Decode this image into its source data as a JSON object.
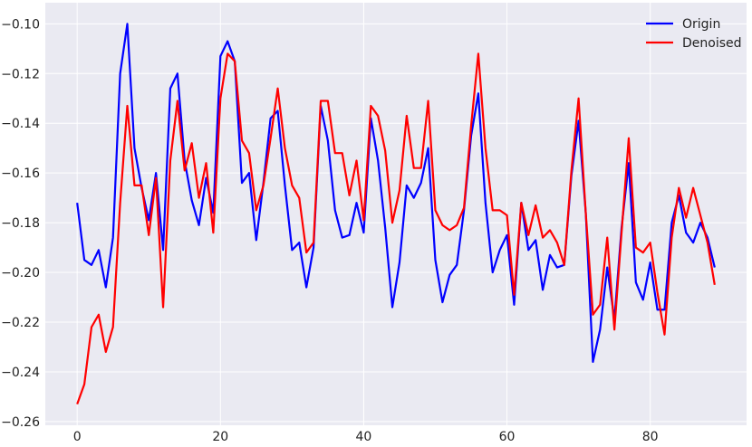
{
  "chart_data": {
    "type": "line",
    "title": "",
    "xlabel": "",
    "ylabel": "",
    "xlim": [
      -4.45,
      93.45
    ],
    "ylim": [
      -0.2615,
      -0.0915
    ],
    "xticks": [
      0,
      20,
      40,
      60,
      80
    ],
    "yticks": [
      -0.26,
      -0.24,
      -0.22,
      -0.2,
      -0.18,
      -0.16,
      -0.14,
      -0.12,
      -0.1
    ],
    "grid": true,
    "background": "#eaeaf2",
    "legend_position": "top-right",
    "series": [
      {
        "name": "Origin",
        "color": "#0000ff",
        "values": [
          -0.172,
          -0.195,
          -0.197,
          -0.191,
          -0.206,
          -0.186,
          -0.12,
          -0.1,
          -0.15,
          -0.166,
          -0.179,
          -0.16,
          -0.191,
          -0.126,
          -0.12,
          -0.155,
          -0.171,
          -0.181,
          -0.162,
          -0.176,
          -0.113,
          -0.107,
          -0.115,
          -0.164,
          -0.16,
          -0.187,
          -0.164,
          -0.138,
          -0.135,
          -0.165,
          -0.191,
          -0.188,
          -0.206,
          -0.19,
          -0.133,
          -0.147,
          -0.175,
          -0.186,
          -0.185,
          -0.172,
          -0.184,
          -0.138,
          -0.155,
          -0.182,
          -0.214,
          -0.196,
          -0.165,
          -0.17,
          -0.164,
          -0.15,
          -0.195,
          -0.212,
          -0.201,
          -0.197,
          -0.175,
          -0.145,
          -0.128,
          -0.172,
          -0.2,
          -0.191,
          -0.185,
          -0.213,
          -0.172,
          -0.191,
          -0.187,
          -0.207,
          -0.193,
          -0.198,
          -0.197,
          -0.161,
          -0.139,
          -0.176,
          -0.236,
          -0.223,
          -0.198,
          -0.219,
          -0.182,
          -0.156,
          -0.204,
          -0.211,
          -0.196,
          -0.215,
          -0.215,
          -0.18,
          -0.169,
          -0.184,
          -0.188,
          -0.18,
          -0.186,
          -0.198
        ]
      },
      {
        "name": "Denoised",
        "color": "#ff0000",
        "values": [
          -0.253,
          -0.245,
          -0.222,
          -0.217,
          -0.232,
          -0.222,
          -0.172,
          -0.133,
          -0.165,
          -0.165,
          -0.185,
          -0.162,
          -0.214,
          -0.155,
          -0.131,
          -0.159,
          -0.148,
          -0.17,
          -0.156,
          -0.184,
          -0.13,
          -0.112,
          -0.115,
          -0.147,
          -0.152,
          -0.175,
          -0.165,
          -0.146,
          -0.126,
          -0.15,
          -0.165,
          -0.17,
          -0.192,
          -0.188,
          -0.131,
          -0.131,
          -0.152,
          -0.152,
          -0.169,
          -0.155,
          -0.179,
          -0.133,
          -0.137,
          -0.151,
          -0.18,
          -0.167,
          -0.137,
          -0.158,
          -0.158,
          -0.131,
          -0.175,
          -0.181,
          -0.183,
          -0.181,
          -0.174,
          -0.141,
          -0.112,
          -0.15,
          -0.175,
          -0.175,
          -0.177,
          -0.209,
          -0.172,
          -0.185,
          -0.173,
          -0.186,
          -0.183,
          -0.188,
          -0.197,
          -0.159,
          -0.13,
          -0.176,
          -0.217,
          -0.213,
          -0.186,
          -0.223,
          -0.184,
          -0.146,
          -0.19,
          -0.192,
          -0.188,
          -0.208,
          -0.225,
          -0.186,
          -0.166,
          -0.178,
          -0.166,
          -0.177,
          -0.188,
          -0.205
        ]
      }
    ]
  }
}
